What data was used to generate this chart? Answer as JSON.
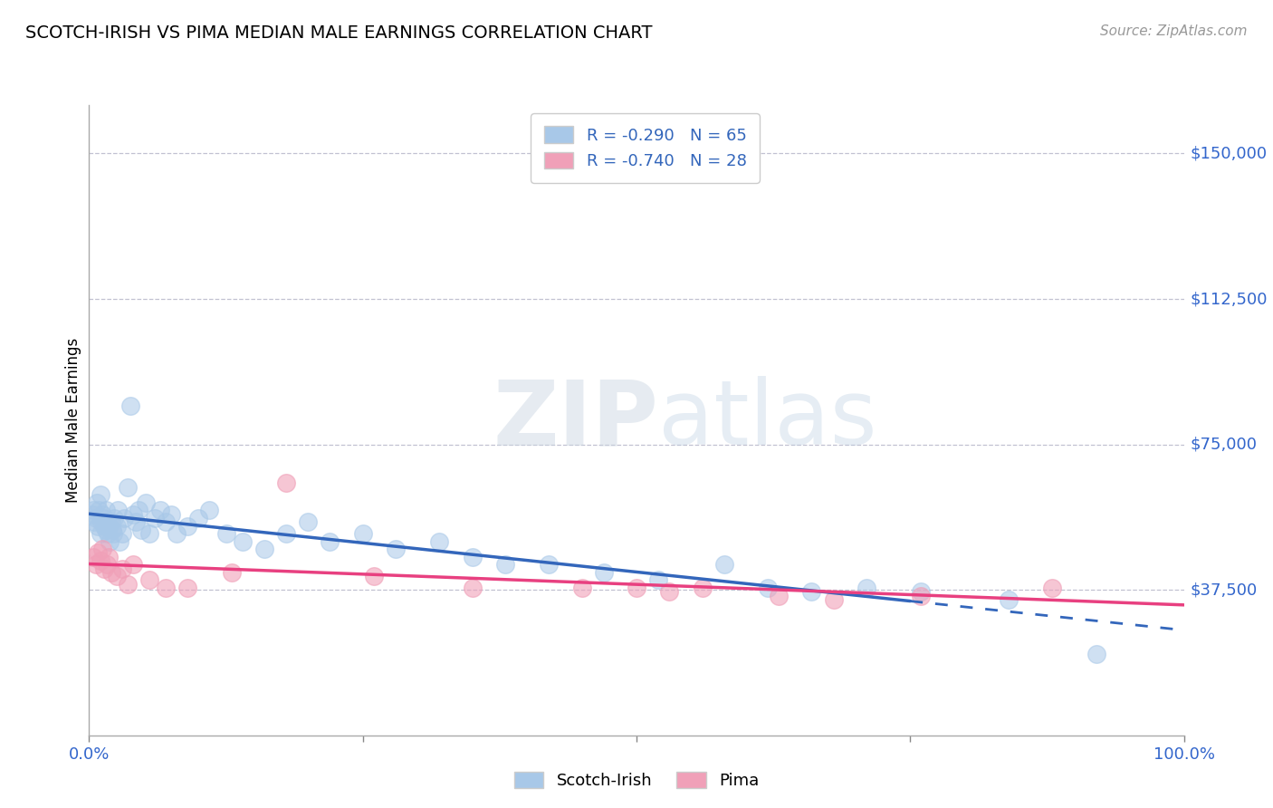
{
  "title": "SCOTCH-IRISH VS PIMA MEDIAN MALE EARNINGS CORRELATION CHART",
  "source": "Source: ZipAtlas.com",
  "ylabel": "Median Male Earnings",
  "ylim": [
    0,
    162500
  ],
  "xlim": [
    0.0,
    1.0
  ],
  "ytick_vals": [
    37500,
    75000,
    112500,
    150000
  ],
  "ytick_labels": [
    "$37,500",
    "$75,000",
    "$112,500",
    "$150,000"
  ],
  "scotch_color": "#a8c8e8",
  "pima_color": "#f0a0b8",
  "trend_scotch_color": "#3366bb",
  "trend_pima_color": "#e84080",
  "watermark_zip": "ZIP",
  "watermark_atlas": "atlas",
  "background_color": "#ffffff",
  "grid_color": "#bbbbcc",
  "scotch_x": [
    0.003,
    0.004,
    0.005,
    0.006,
    0.007,
    0.008,
    0.009,
    0.01,
    0.01,
    0.011,
    0.012,
    0.013,
    0.014,
    0.015,
    0.015,
    0.016,
    0.017,
    0.018,
    0.019,
    0.02,
    0.021,
    0.022,
    0.023,
    0.025,
    0.026,
    0.028,
    0.03,
    0.032,
    0.035,
    0.038,
    0.04,
    0.043,
    0.045,
    0.048,
    0.052,
    0.055,
    0.06,
    0.065,
    0.07,
    0.075,
    0.08,
    0.09,
    0.1,
    0.11,
    0.125,
    0.14,
    0.16,
    0.18,
    0.2,
    0.22,
    0.25,
    0.28,
    0.32,
    0.35,
    0.38,
    0.42,
    0.47,
    0.52,
    0.58,
    0.62,
    0.66,
    0.71,
    0.76,
    0.84,
    0.92
  ],
  "scotch_y": [
    57000,
    58000,
    55000,
    56000,
    60000,
    54000,
    58000,
    52000,
    62000,
    55000,
    57000,
    56000,
    54000,
    53000,
    58000,
    55000,
    52000,
    54000,
    50000,
    55000,
    53000,
    52000,
    56000,
    54000,
    58000,
    50000,
    52000,
    56000,
    64000,
    85000,
    57000,
    55000,
    58000,
    53000,
    60000,
    52000,
    56000,
    58000,
    55000,
    57000,
    52000,
    54000,
    56000,
    58000,
    52000,
    50000,
    48000,
    52000,
    55000,
    50000,
    52000,
    48000,
    50000,
    46000,
    44000,
    44000,
    42000,
    40000,
    44000,
    38000,
    37000,
    38000,
    37000,
    35000,
    21000
  ],
  "pima_x": [
    0.004,
    0.006,
    0.008,
    0.01,
    0.012,
    0.014,
    0.016,
    0.018,
    0.02,
    0.025,
    0.03,
    0.035,
    0.04,
    0.055,
    0.07,
    0.09,
    0.13,
    0.18,
    0.26,
    0.35,
    0.45,
    0.5,
    0.53,
    0.56,
    0.63,
    0.68,
    0.76,
    0.88
  ],
  "pima_y": [
    46000,
    44000,
    47000,
    45000,
    48000,
    43000,
    44000,
    46000,
    42000,
    41000,
    43000,
    39000,
    44000,
    40000,
    38000,
    38000,
    42000,
    65000,
    41000,
    38000,
    38000,
    38000,
    37000,
    38000,
    36000,
    35000,
    36000,
    38000
  ],
  "legend_r_scotch": "R = -0.290",
  "legend_n_scotch": "N = 65",
  "legend_r_pima": "R = -0.740",
  "legend_n_pima": "N = 28"
}
